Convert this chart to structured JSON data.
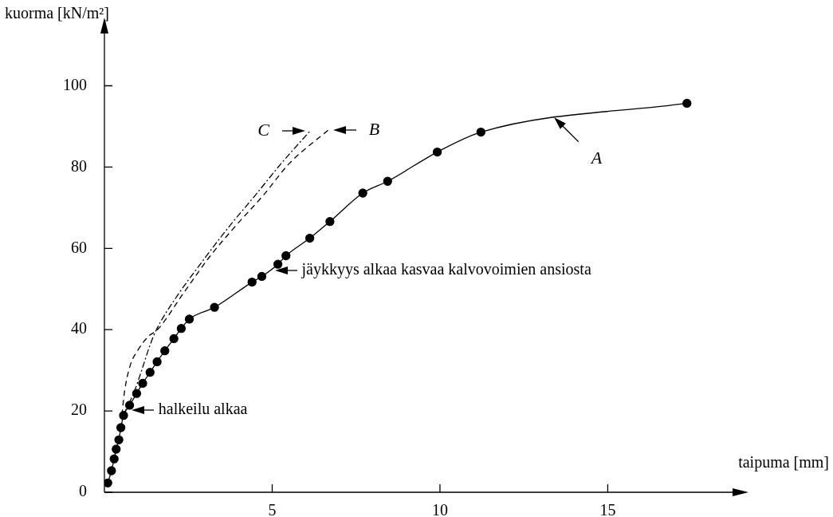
{
  "chart_data": {
    "type": "line",
    "xlabel": "taipuma [mm]",
    "ylabel": "kuorma [kN/m²]",
    "xlim": [
      0,
      19.1
    ],
    "ylim": [
      0,
      116
    ],
    "xticks": [
      5,
      10,
      15
    ],
    "yticks": [
      0,
      20,
      40,
      60,
      80,
      100
    ],
    "grid": false,
    "legend": false,
    "series": [
      {
        "color": "#000000",
        "marker": "circle",
        "line_style": "solid",
        "x": [
          0.1,
          0.21,
          0.29,
          0.35,
          0.43,
          0.49,
          0.57,
          0.75,
          0.96,
          1.14,
          1.36,
          1.57,
          1.8,
          2.07,
          2.29,
          2.53,
          3.28,
          4.4,
          4.69,
          5.17,
          5.41,
          6.12,
          6.72,
          7.7,
          8.44,
          9.92,
          11.22,
          17.36
        ],
        "values": [
          2.3,
          5.3,
          8.2,
          10.6,
          12.9,
          15.9,
          18.9,
          21.4,
          24.3,
          26.8,
          29.5,
          32.1,
          34.8,
          37.8,
          40.3,
          42.6,
          45.5,
          51.7,
          53.1,
          56.1,
          58.2,
          62.5,
          66.6,
          73.6,
          76.5,
          83.7,
          88.6,
          95.7
        ]
      },
      {
        "color": "#000000",
        "marker": "none",
        "line_style": "dashed",
        "x": [
          0.52,
          0.6,
          0.76,
          1.0,
          1.33,
          1.56,
          2.35,
          3.14,
          3.94,
          4.73,
          5.51,
          6.67
        ],
        "values": [
          19,
          24.8,
          31,
          35,
          38.5,
          39.8,
          48.9,
          58,
          65.8,
          73,
          80.9,
          89.1
        ]
      },
      {
        "color": "#000000",
        "marker": "none",
        "line_style": "dashdot",
        "x": [
          0.57,
          0.9,
          1.15,
          1.35,
          1.55,
          2.11,
          2.9,
          3.7,
          4.49,
          5.27,
          6.13
        ],
        "values": [
          19,
          25,
          31,
          36,
          40,
          47.6,
          56.6,
          65.2,
          73,
          80.9,
          88.9
        ]
      }
    ],
    "annotations": [
      {
        "text": "A",
        "x": 13.3,
        "y": 93
      },
      {
        "text": "B",
        "x": 6.67,
        "y": 89.1
      },
      {
        "text": "C",
        "x": 6.13,
        "y": 88.9
      },
      {
        "text": "halkeilu alkaa",
        "x": 0.66,
        "y": 20.2
      },
      {
        "text": "jäykkyys alkaa kasvaa kalvovoimien ansiosta",
        "x": 4.93,
        "y": 54.6
      }
    ]
  }
}
